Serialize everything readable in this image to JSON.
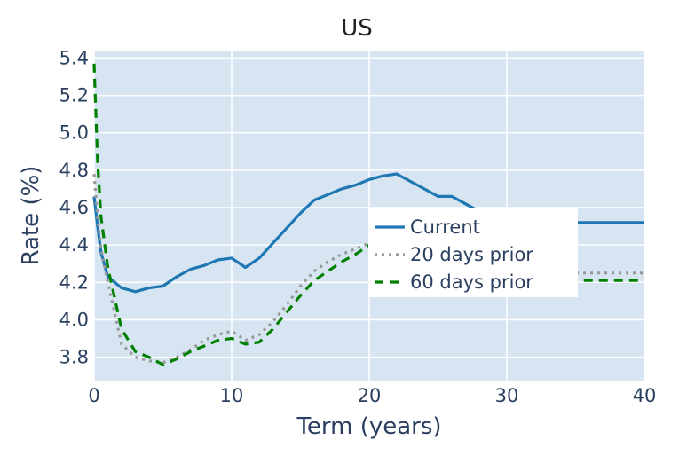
{
  "chart_data": {
    "type": "line",
    "title": "US",
    "xlabel": "Term (years)",
    "ylabel": "Rate (%)",
    "xlim": [
      0,
      40
    ],
    "ylim": [
      3.67,
      5.44
    ],
    "x_ticks": [
      0,
      10,
      20,
      30,
      40
    ],
    "x_tick_labels": [
      "0",
      "10",
      "20",
      "30",
      "40"
    ],
    "y_ticks": [
      3.8,
      4.0,
      4.2,
      4.4,
      4.6,
      4.8,
      5.0,
      5.2,
      5.4
    ],
    "y_tick_labels": [
      "3.8",
      "4.0",
      "4.2",
      "4.4",
      "4.6",
      "4.8",
      "5.0",
      "5.2",
      "5.4"
    ],
    "grid": true,
    "legend_position": "center-right",
    "plot_bgcolor": "#d6e5f1",
    "series": [
      {
        "name": "Current",
        "color": "#1f77b4",
        "dash": "solid",
        "x": [
          0,
          0.25,
          0.5,
          1,
          2,
          3,
          4,
          5,
          6,
          7,
          8,
          9,
          10,
          11,
          12,
          13,
          14,
          15,
          16,
          17,
          18,
          19,
          20,
          21,
          22,
          23,
          24,
          25,
          26,
          27,
          28,
          29,
          30,
          31,
          32,
          33,
          34,
          35,
          36,
          37,
          38,
          39,
          40
        ],
        "values": [
          4.66,
          4.5,
          4.36,
          4.23,
          4.17,
          4.15,
          4.17,
          4.18,
          4.23,
          4.27,
          4.29,
          4.32,
          4.33,
          4.28,
          4.33,
          4.41,
          4.49,
          4.57,
          4.64,
          4.67,
          4.7,
          4.72,
          4.75,
          4.77,
          4.78,
          4.74,
          4.7,
          4.66,
          4.66,
          4.62,
          4.58,
          4.56,
          4.54,
          4.52,
          4.52,
          4.52,
          4.52,
          4.52,
          4.52,
          4.52,
          4.52,
          4.52,
          4.52
        ]
      },
      {
        "name": "20 days prior",
        "color": "#999999",
        "dash": "dot",
        "x": [
          0,
          0.25,
          0.5,
          1,
          2,
          3,
          4,
          5,
          6,
          7,
          8,
          9,
          10,
          11,
          12,
          13,
          14,
          15,
          16,
          17,
          18,
          19,
          20,
          21,
          22,
          23,
          24,
          25,
          26,
          27,
          28,
          29,
          30,
          31,
          32,
          33,
          34,
          35,
          36,
          37,
          38,
          39,
          40
        ],
        "values": [
          4.78,
          4.55,
          4.38,
          4.2,
          3.87,
          3.8,
          3.78,
          3.77,
          3.8,
          3.84,
          3.89,
          3.92,
          3.94,
          3.89,
          3.92,
          3.99,
          4.08,
          4.18,
          4.26,
          4.31,
          4.35,
          4.38,
          4.41,
          4.44,
          4.45,
          4.41,
          4.37,
          4.34,
          4.33,
          4.3,
          4.29,
          4.28,
          4.27,
          4.26,
          4.26,
          4.25,
          4.25,
          4.25,
          4.25,
          4.25,
          4.25,
          4.25,
          4.25
        ]
      },
      {
        "name": "60 days prior",
        "color": "#008000",
        "dash": "dash",
        "x": [
          0,
          0.25,
          0.5,
          1,
          2,
          3,
          4,
          5,
          6,
          7,
          8,
          9,
          10,
          11,
          12,
          13,
          14,
          15,
          16,
          17,
          18,
          19,
          20,
          21,
          22,
          23,
          24,
          25,
          26,
          27,
          28,
          29,
          30,
          31,
          32,
          33,
          34,
          35,
          36,
          37,
          38,
          39,
          40
        ],
        "values": [
          5.37,
          4.85,
          4.55,
          4.28,
          3.95,
          3.83,
          3.8,
          3.76,
          3.79,
          3.83,
          3.86,
          3.89,
          3.9,
          3.87,
          3.88,
          3.95,
          4.04,
          4.13,
          4.21,
          4.26,
          4.31,
          4.35,
          4.4,
          4.42,
          4.43,
          4.38,
          4.33,
          4.3,
          4.28,
          4.26,
          4.24,
          4.23,
          4.22,
          4.21,
          4.21,
          4.21,
          4.21,
          4.21,
          4.21,
          4.21,
          4.21,
          4.21,
          4.21
        ]
      }
    ]
  }
}
